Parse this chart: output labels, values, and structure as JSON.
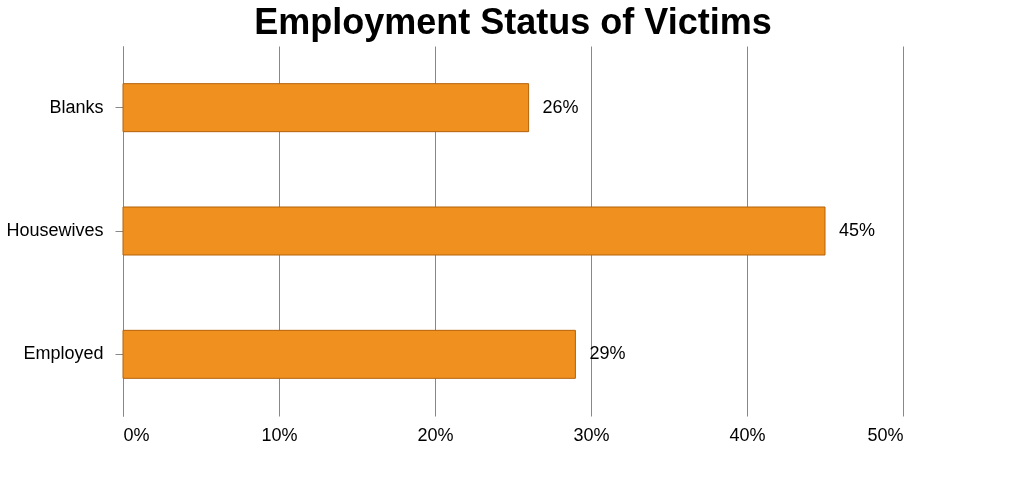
{
  "chart_data": {
    "type": "bar",
    "orientation": "horizontal",
    "title": "Employment Status of Victims",
    "categories": [
      "Blanks",
      "Housewives",
      "Employed"
    ],
    "values": [
      26,
      45,
      29
    ],
    "value_labels": [
      "26%",
      "45%",
      "29%"
    ],
    "color": "#f0901e",
    "xlim": [
      0,
      50
    ],
    "xticks": [
      {
        "value": 0,
        "label": "0%"
      },
      {
        "value": 10,
        "label": "10%"
      },
      {
        "value": 20,
        "label": "20%"
      },
      {
        "value": 30,
        "label": "30%"
      },
      {
        "value": 40,
        "label": "40%"
      },
      {
        "value": 50,
        "label": "50%"
      }
    ],
    "grid": "x"
  }
}
